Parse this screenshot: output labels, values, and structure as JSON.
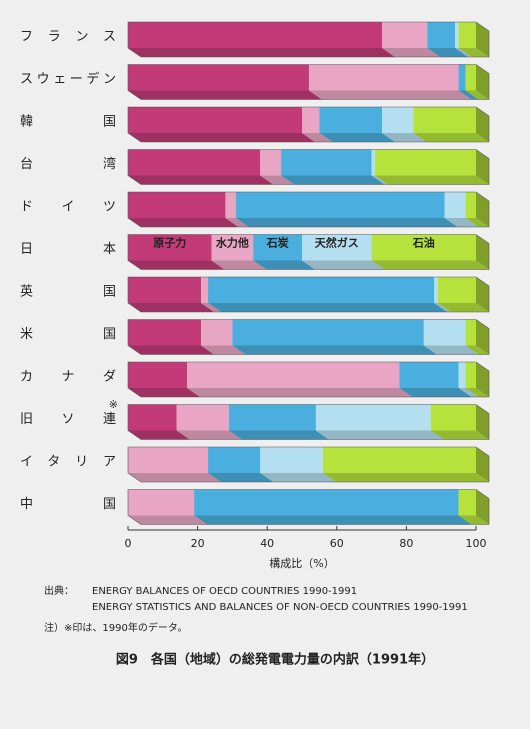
{
  "chart_data": {
    "type": "stacked-bar-3d",
    "orientation": "horizontal",
    "categories": [
      "フランス",
      "スウェーデン",
      "韓国",
      "台湾",
      "ドイツ",
      "日本",
      "英国",
      "米国",
      "カナダ",
      "旧ソ連",
      "イタリア",
      "中国"
    ],
    "annotations": [
      {
        "text": "※"
      }
    ],
    "series": [
      {
        "name": "原子力",
        "color": "#c23a78",
        "values": [
          73,
          52,
          50,
          38,
          28,
          24,
          21,
          21,
          17,
          14,
          0,
          0
        ]
      },
      {
        "name": "水力他",
        "color": "#e8a6c4",
        "values": [
          13,
          43,
          5,
          6,
          3,
          12,
          2,
          9,
          61,
          15,
          23,
          19
        ]
      },
      {
        "name": "石炭",
        "color": "#4aaede",
        "values": [
          8,
          2,
          18,
          26,
          60,
          14,
          65,
          55,
          17,
          25,
          15,
          76
        ]
      },
      {
        "name": "天然ガス",
        "color": "#b4dff0",
        "values": [
          1,
          0,
          9,
          1,
          6,
          20,
          1,
          12,
          2,
          33,
          18,
          0
        ]
      },
      {
        "name": "石油",
        "color": "#b5e33c",
        "values": [
          5,
          3,
          18,
          29,
          3,
          30,
          11,
          3,
          3,
          13,
          44,
          5
        ]
      }
    ],
    "xlim": [
      0,
      100
    ],
    "xticks": [
      0,
      20,
      40,
      60,
      80,
      100
    ],
    "xlabel": "構成比（%）",
    "source": {
      "label": "出典：",
      "lines": [
        "ENERGY BALANCES OF OECD COUNTRIES 1990-1991",
        "ENERGY STATISTICS AND BALANCES OF NON-OECD COUNTRIES 1990-1991"
      ]
    },
    "note": "注）※印は、1990年のデータ。",
    "caption": "図9　各国（地域）の総発電電力量の内訳（1991年）"
  }
}
